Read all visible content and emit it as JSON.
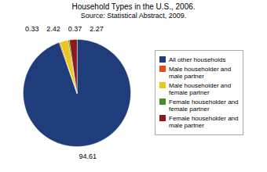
{
  "chart_data": {
    "type": "pie",
    "title": "Household Types in the U.S., 2006.",
    "subtitle": "Source: Statistical Abstract, 2009.",
    "categories": [
      "All other households",
      "Male householder and\nmale partner",
      "Male householder and\nfemale partner",
      "Female householder and\nfemale partner",
      "Female householder and\nmale partner"
    ],
    "values": [
      94.61,
      0.33,
      2.42,
      0.37,
      2.27
    ],
    "colors": [
      "#1f3d7a",
      "#e84b1a",
      "#e8c81a",
      "#4a8a2a",
      "#8b1a1a"
    ],
    "data_labels": true,
    "legend": "right"
  }
}
